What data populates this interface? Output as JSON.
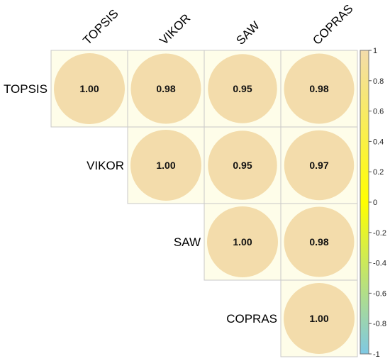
{
  "chart_data": {
    "type": "heatmap",
    "variant": "correlation-matrix-upper-circles",
    "variables": [
      "TOPSIS",
      "VIKOR",
      "SAW",
      "COPRAS"
    ],
    "values": [
      {
        "row": "TOPSIS",
        "col": "TOPSIS",
        "value": 1.0,
        "label": "1.00"
      },
      {
        "row": "TOPSIS",
        "col": "VIKOR",
        "value": 0.98,
        "label": "0.98"
      },
      {
        "row": "TOPSIS",
        "col": "SAW",
        "value": 0.95,
        "label": "0.95"
      },
      {
        "row": "TOPSIS",
        "col": "COPRAS",
        "value": 0.98,
        "label": "0.98"
      },
      {
        "row": "VIKOR",
        "col": "VIKOR",
        "value": 1.0,
        "label": "1.00"
      },
      {
        "row": "VIKOR",
        "col": "SAW",
        "value": 0.95,
        "label": "0.95"
      },
      {
        "row": "VIKOR",
        "col": "COPRAS",
        "value": 0.97,
        "label": "0.97"
      },
      {
        "row": "SAW",
        "col": "SAW",
        "value": 1.0,
        "label": "1.00"
      },
      {
        "row": "SAW",
        "col": "COPRAS",
        "value": 0.98,
        "label": "0.98"
      },
      {
        "row": "COPRAS",
        "col": "COPRAS",
        "value": 1.0,
        "label": "1.00"
      }
    ],
    "colorbar": {
      "range": [
        -1,
        1
      ],
      "ticks": [
        "1",
        "0.8",
        "0.6",
        "0.4",
        "0.2",
        "0",
        "-0.2",
        "-0.4",
        "-0.6",
        "-0.8",
        "-1"
      ],
      "colors": {
        "low": "#7ec8e3",
        "mid": "#ffff00",
        "high": "#f3dcab"
      },
      "placement": "right"
    },
    "colors": {
      "cell_background": "#fefde9",
      "circle_fill": "#f3dcab",
      "grid_line": "#c8c8c8"
    },
    "title": "",
    "xlabel": "",
    "ylabel": ""
  }
}
